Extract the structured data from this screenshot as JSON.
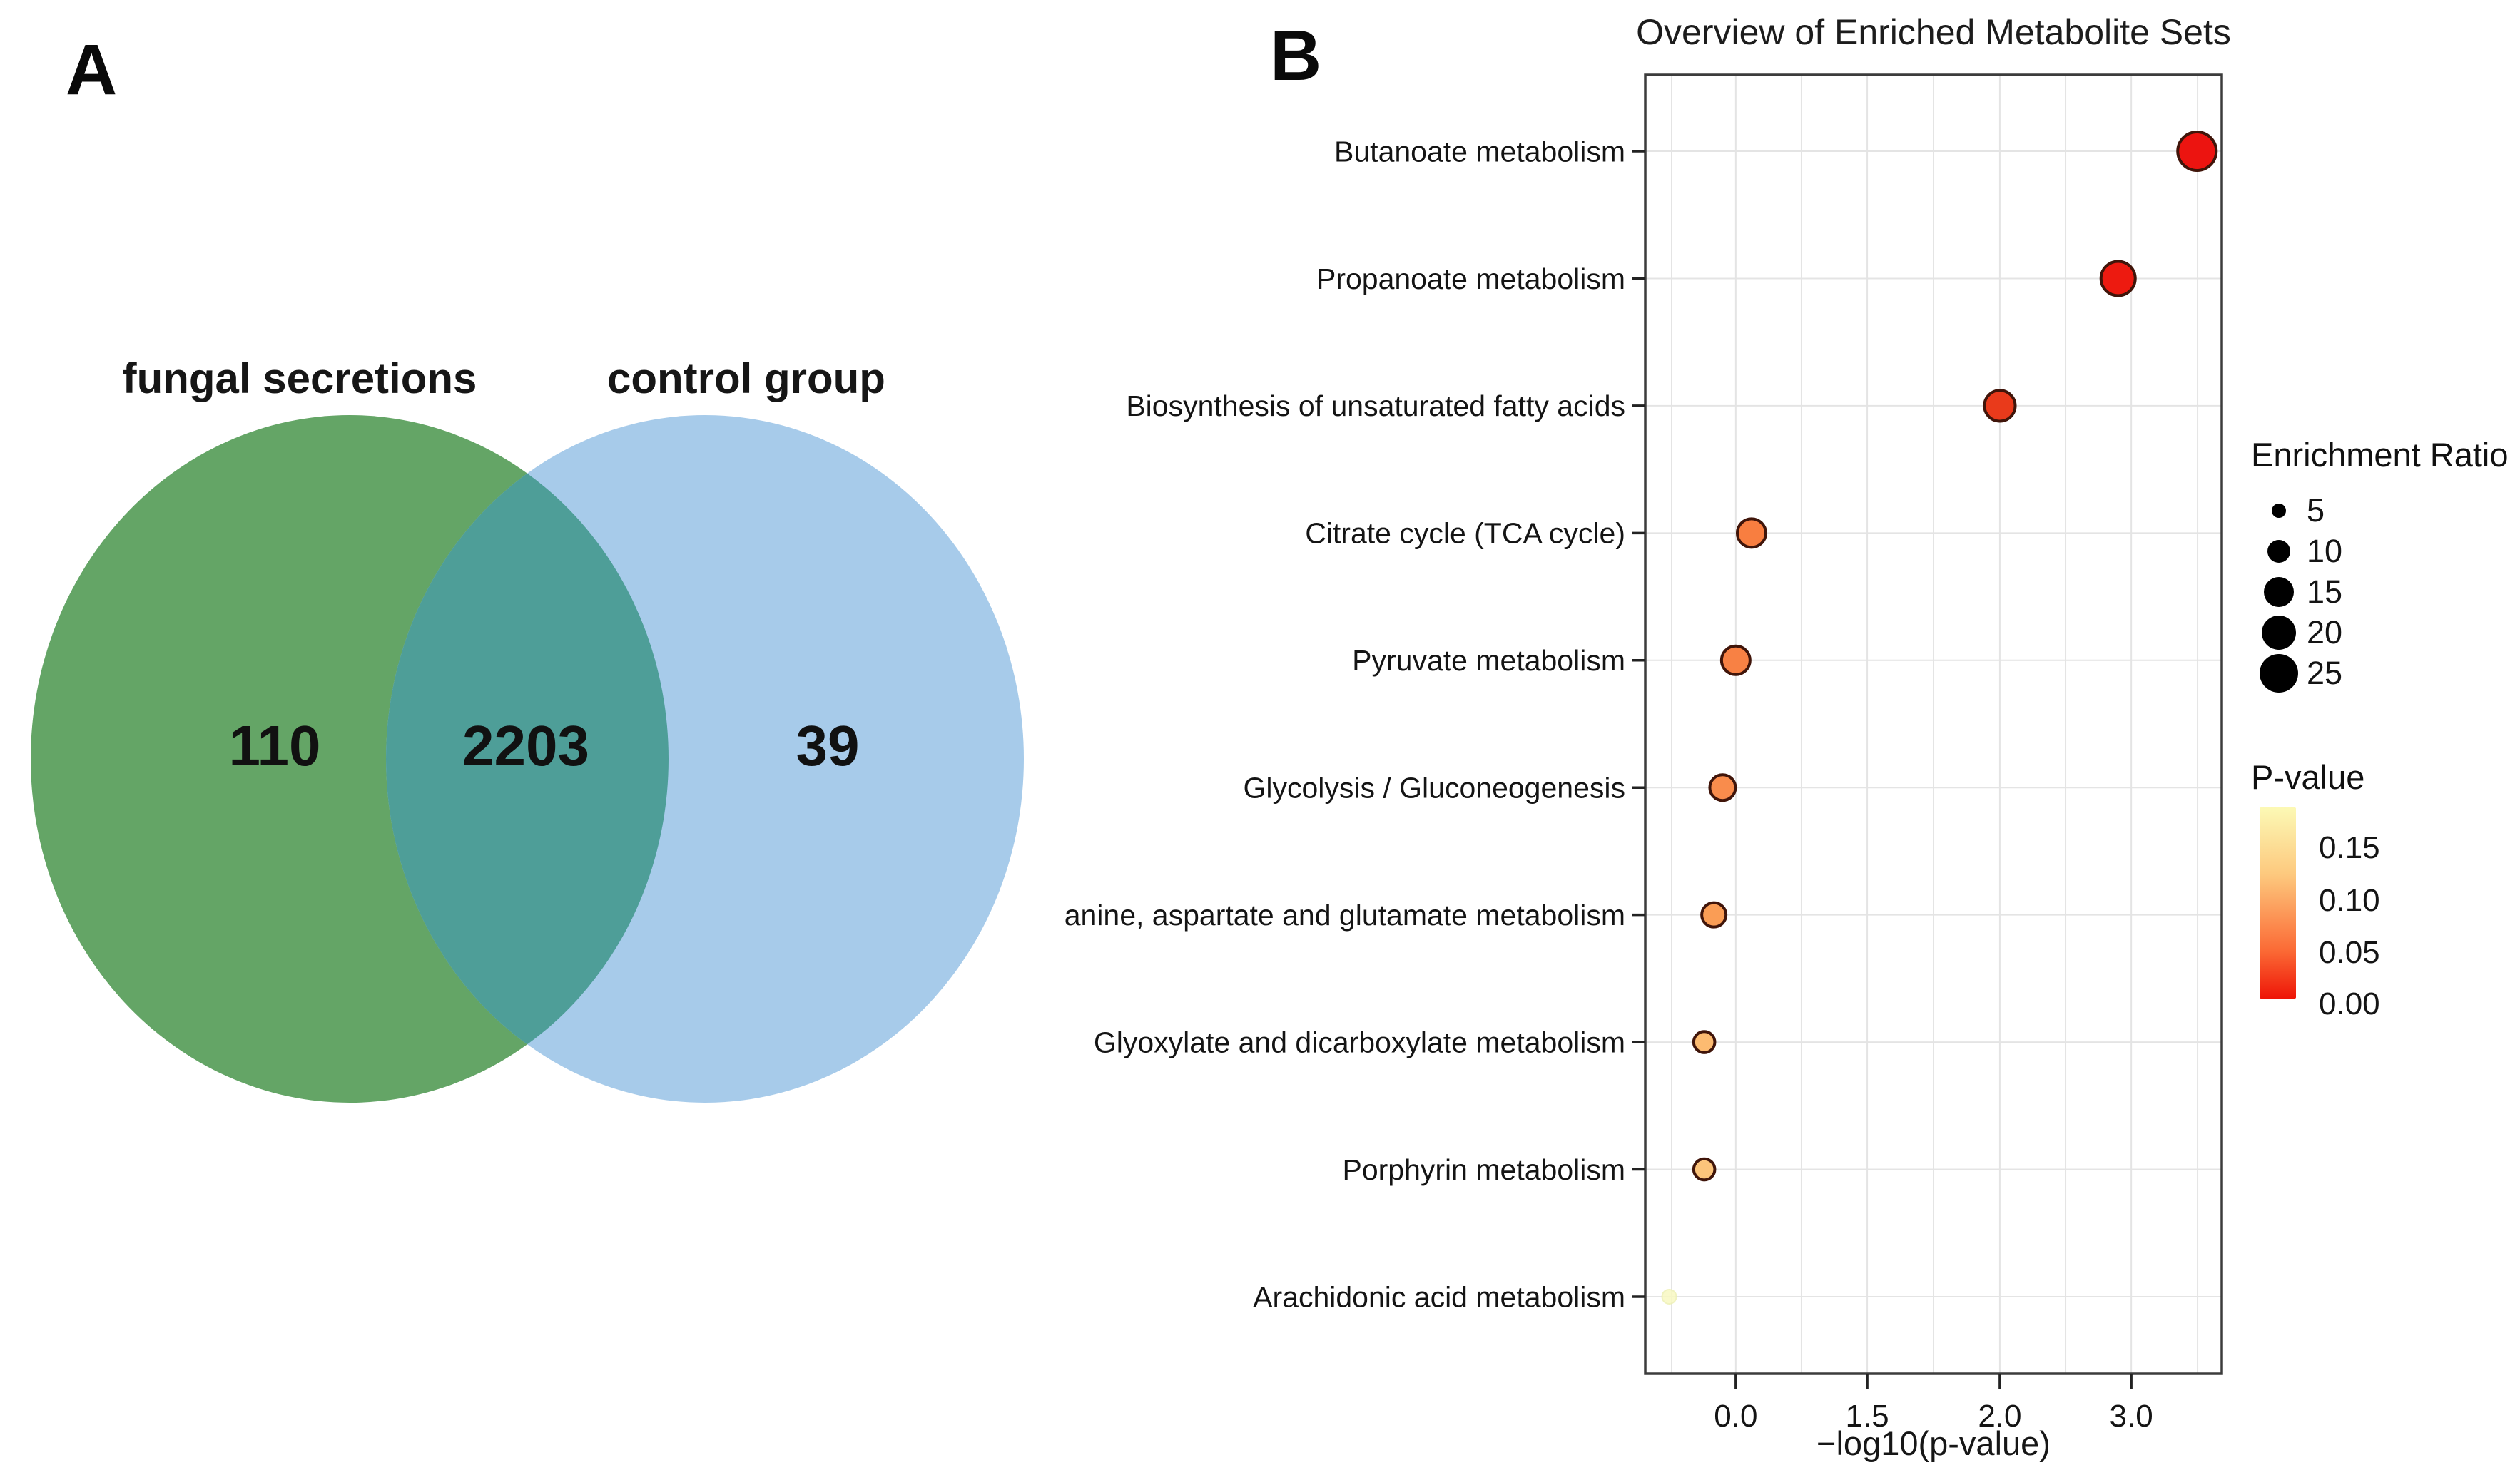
{
  "panels": {
    "a_label": "A",
    "b_label": "B"
  },
  "chart_data": [
    {
      "type": "venn",
      "panel": "A",
      "sets": [
        {
          "label": "fungal secretions",
          "unique_count": "110",
          "color": "#64a566"
        },
        {
          "label": "control group",
          "unique_count": "39",
          "color": "#a7cbea"
        }
      ],
      "intersection_count": "2203",
      "intersection_color": "#4e9e98"
    },
    {
      "type": "scatter",
      "panel": "B",
      "title": "Overview of Enriched Metabolite Sets",
      "xlabel": "−log10(p-value)",
      "x_ticks": [
        "0.0",
        "1.5",
        "2.0",
        "3.0"
      ],
      "x_tick_values": [
        0.0,
        1.5,
        2.0,
        3.0
      ],
      "grid": true,
      "axis_note": "printed tick labels 0.0, 1.5, 2.0, 3.0 are evenly spaced",
      "legend": {
        "size_title": "Enrichment Ratio",
        "size_values": [
          "5",
          "10",
          "15",
          "20",
          "25"
        ],
        "color_title": "P-value",
        "color_ticks": [
          "0.15",
          "0.10",
          "0.05",
          "0.00"
        ],
        "color_scale_top_to_bottom": [
          "#fcf9b5",
          "#fdc97e",
          "#fb6a35",
          "#ee1507"
        ]
      },
      "points": [
        {
          "pathway": "Butanoate metabolism",
          "x": 3.5,
          "enrichment_ratio": 25,
          "color": "#ec1410"
        },
        {
          "pathway": "Propanoate metabolism",
          "x": 2.9,
          "enrichment_ratio": 20,
          "color": "#ed1a10"
        },
        {
          "pathway": "Biosynthesis of unsaturated fatty acids",
          "x": 2.0,
          "enrichment_ratio": 16,
          "color": "#e93a1b"
        },
        {
          "pathway": "Citrate cycle (TCA cycle)",
          "x": 0.18,
          "enrichment_ratio": 14,
          "color": "#f87e40"
        },
        {
          "pathway": "Pyruvate metabolism",
          "x": 0.0,
          "enrichment_ratio": 14,
          "color": "#f88144"
        },
        {
          "pathway": "Glycolysis / Gluconeogenesis",
          "x": -0.15,
          "enrichment_ratio": 12,
          "color": "#f98c4c"
        },
        {
          "pathway": "anine, aspartate and glutamate metabolism",
          "x": -0.25,
          "enrichment_ratio": 11,
          "color": "#fa9d55"
        },
        {
          "pathway": "Glyoxylate and dicarboxylate metabolism",
          "x": -0.36,
          "enrichment_ratio": 9,
          "color": "#fcbb71"
        },
        {
          "pathway": "Porphyrin metabolism",
          "x": -0.36,
          "enrichment_ratio": 9,
          "color": "#fcc47b"
        },
        {
          "pathway": "Arachidonic acid metabolism",
          "x": -0.76,
          "enrichment_ratio": 5,
          "color": "#f8f9c3",
          "faint": true
        }
      ]
    }
  ]
}
